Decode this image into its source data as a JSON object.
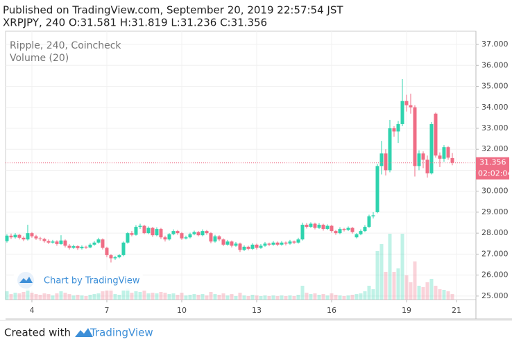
{
  "header": {
    "published": "Published on TradingView.com, September 20, 2019 22:57:54 JST",
    "ohlc": "XRPJPY, 240 O:31.581 H:31.819 L:31.236 C:31.356"
  },
  "chart_data": {
    "type": "candlestick",
    "legend": [
      "Ripple, 240, Coincheck",
      "Volume (20)"
    ],
    "watermark": "Chart by TradingView",
    "up_color": "#2fd3ae",
    "down_color": "#ef6d85",
    "ylim": [
      24.83,
      37.63
    ],
    "yticks": [
      {
        "value": 25,
        "label": "25.000"
      },
      {
        "value": 26,
        "label": "26.000"
      },
      {
        "value": 27,
        "label": "27.000"
      },
      {
        "value": 28,
        "label": "28.000"
      },
      {
        "value": 29,
        "label": "29.000"
      },
      {
        "value": 30,
        "label": "30.000"
      },
      {
        "value": 31,
        "label": "31.000"
      },
      {
        "value": 32,
        "label": "32.000"
      },
      {
        "value": 33,
        "label": "33.000"
      },
      {
        "value": 34,
        "label": "34.000"
      },
      {
        "value": 35,
        "label": "35.000"
      },
      {
        "value": 36,
        "label": "36.000"
      },
      {
        "value": 37,
        "label": "37.000"
      }
    ],
    "xlim": [
      -0.33,
      112.67
    ],
    "xticks": [
      {
        "value": 6,
        "label": "4"
      },
      {
        "value": 24,
        "label": "7"
      },
      {
        "value": 42,
        "label": "10"
      },
      {
        "value": 60,
        "label": "13"
      },
      {
        "value": 78,
        "label": "16"
      },
      {
        "value": 96,
        "label": "19"
      },
      {
        "value": 108,
        "label": "21"
      }
    ],
    "last_price": {
      "value": 31.356,
      "label": "31.356"
    },
    "countdown": "02:02:04",
    "candles": [
      [
        27.62,
        27.95,
        27.55,
        27.88,
        12
      ],
      [
        27.88,
        27.98,
        27.72,
        27.8,
        8
      ],
      [
        27.8,
        28.0,
        27.74,
        27.92,
        10
      ],
      [
        27.92,
        27.96,
        27.7,
        27.78,
        9
      ],
      [
        27.78,
        27.85,
        27.62,
        27.7,
        11
      ],
      [
        27.7,
        28.4,
        27.65,
        28.0,
        18
      ],
      [
        28.0,
        28.05,
        27.78,
        27.85,
        10
      ],
      [
        27.85,
        27.92,
        27.68,
        27.75,
        8
      ],
      [
        27.75,
        27.82,
        27.64,
        27.72,
        7
      ],
      [
        27.72,
        27.78,
        27.55,
        27.62,
        9
      ],
      [
        27.62,
        27.7,
        27.48,
        27.55,
        8
      ],
      [
        27.55,
        27.68,
        27.5,
        27.6,
        6
      ],
      [
        27.6,
        27.66,
        27.4,
        27.48,
        9
      ],
      [
        27.48,
        27.9,
        27.45,
        27.65,
        12
      ],
      [
        27.65,
        27.7,
        27.32,
        27.4,
        10
      ],
      [
        27.4,
        27.48,
        27.22,
        27.3,
        8
      ],
      [
        27.3,
        27.45,
        27.25,
        27.38,
        6
      ],
      [
        27.38,
        27.42,
        27.2,
        27.28,
        7
      ],
      [
        27.28,
        27.42,
        27.22,
        27.35,
        6
      ],
      [
        27.35,
        27.4,
        27.25,
        27.32,
        5
      ],
      [
        27.32,
        27.52,
        27.28,
        27.45,
        7
      ],
      [
        27.45,
        27.62,
        27.4,
        27.55,
        8
      ],
      [
        27.55,
        27.78,
        27.5,
        27.7,
        9
      ],
      [
        27.7,
        27.75,
        27.22,
        27.3,
        12
      ],
      [
        27.3,
        27.35,
        26.85,
        26.95,
        14
      ],
      [
        26.95,
        27.0,
        26.6,
        26.8,
        16
      ],
      [
        26.8,
        26.92,
        26.72,
        26.85,
        8
      ],
      [
        26.85,
        27.0,
        26.8,
        26.95,
        7
      ],
      [
        26.95,
        27.6,
        26.9,
        27.55,
        14
      ],
      [
        27.55,
        28.05,
        27.5,
        28.0,
        16
      ],
      [
        28.0,
        28.1,
        27.85,
        27.92,
        10
      ],
      [
        27.92,
        28.38,
        27.88,
        28.3,
        12
      ],
      [
        28.3,
        28.45,
        28.2,
        28.35,
        11
      ],
      [
        28.35,
        28.4,
        27.95,
        28.0,
        13
      ],
      [
        28.0,
        28.32,
        27.95,
        28.25,
        9
      ],
      [
        28.25,
        28.3,
        27.82,
        27.9,
        10
      ],
      [
        27.9,
        28.28,
        27.85,
        28.2,
        9
      ],
      [
        28.2,
        28.25,
        27.72,
        27.8,
        11
      ],
      [
        27.8,
        27.88,
        27.6,
        27.7,
        10
      ],
      [
        27.7,
        28.0,
        27.65,
        27.95,
        8
      ],
      [
        27.95,
        28.18,
        27.9,
        28.1,
        9
      ],
      [
        28.1,
        28.15,
        27.92,
        28.0,
        7
      ],
      [
        28.0,
        28.05,
        27.68,
        27.75,
        10
      ],
      [
        27.75,
        27.88,
        27.7,
        27.8,
        6
      ],
      [
        27.8,
        28.02,
        27.75,
        27.95,
        7
      ],
      [
        27.95,
        28.12,
        27.9,
        28.05,
        8
      ],
      [
        28.05,
        28.1,
        27.85,
        27.9,
        7
      ],
      [
        27.9,
        28.18,
        27.85,
        28.1,
        8
      ],
      [
        28.1,
        28.15,
        27.92,
        28.0,
        6
      ],
      [
        28.0,
        28.05,
        27.52,
        27.6,
        11
      ],
      [
        27.6,
        27.92,
        27.55,
        27.85,
        8
      ],
      [
        27.85,
        27.9,
        27.62,
        27.7,
        7
      ],
      [
        27.7,
        27.75,
        27.38,
        27.45,
        9
      ],
      [
        27.45,
        27.68,
        27.4,
        27.6,
        6
      ],
      [
        27.6,
        27.65,
        27.32,
        27.4,
        8
      ],
      [
        27.4,
        27.58,
        27.35,
        27.5,
        5
      ],
      [
        27.5,
        27.55,
        27.1,
        27.2,
        10
      ],
      [
        27.2,
        27.42,
        27.15,
        27.35,
        6
      ],
      [
        27.35,
        27.4,
        27.18,
        27.25,
        5
      ],
      [
        27.25,
        27.52,
        27.2,
        27.45,
        7
      ],
      [
        27.45,
        27.5,
        27.22,
        27.3,
        6
      ],
      [
        27.3,
        27.48,
        27.25,
        27.4,
        5
      ],
      [
        27.4,
        27.58,
        27.35,
        27.5,
        6
      ],
      [
        27.5,
        27.55,
        27.38,
        27.45,
        5
      ],
      [
        27.45,
        27.62,
        27.4,
        27.55,
        6
      ],
      [
        27.55,
        27.6,
        27.38,
        27.45,
        5
      ],
      [
        27.45,
        27.62,
        27.4,
        27.55,
        6
      ],
      [
        27.55,
        27.6,
        27.42,
        27.5,
        5
      ],
      [
        27.5,
        27.68,
        27.45,
        27.6,
        6
      ],
      [
        27.6,
        27.65,
        27.48,
        27.55,
        5
      ],
      [
        27.55,
        27.78,
        27.5,
        27.7,
        7
      ],
      [
        27.7,
        28.5,
        27.65,
        28.4,
        20
      ],
      [
        28.4,
        28.48,
        28.22,
        28.3,
        10
      ],
      [
        28.3,
        28.52,
        28.25,
        28.45,
        8
      ],
      [
        28.45,
        28.5,
        28.18,
        28.25,
        9
      ],
      [
        28.25,
        28.48,
        28.2,
        28.4,
        7
      ],
      [
        28.4,
        28.45,
        28.12,
        28.2,
        8
      ],
      [
        28.2,
        28.42,
        28.15,
        28.35,
        6
      ],
      [
        28.35,
        28.4,
        28.02,
        28.1,
        9
      ],
      [
        28.1,
        28.15,
        27.92,
        28.0,
        7
      ],
      [
        28.0,
        28.28,
        27.95,
        28.2,
        6
      ],
      [
        28.2,
        28.25,
        28.08,
        28.15,
        5
      ],
      [
        28.15,
        28.32,
        28.1,
        28.25,
        6
      ],
      [
        28.25,
        28.3,
        27.98,
        28.05,
        7
      ],
      [
        27.8,
        28.0,
        27.75,
        27.95,
        8
      ],
      [
        27.95,
        28.18,
        27.9,
        28.1,
        9
      ],
      [
        28.1,
        28.38,
        28.05,
        28.3,
        12
      ],
      [
        28.3,
        28.88,
        28.25,
        28.8,
        20
      ],
      [
        28.8,
        29.0,
        28.7,
        28.85,
        15
      ],
      [
        29.0,
        31.3,
        28.95,
        31.2,
        70
      ],
      [
        31.2,
        32.4,
        30.8,
        31.8,
        80
      ],
      [
        31.8,
        32.0,
        30.75,
        31.0,
        40
      ],
      [
        31.0,
        33.4,
        30.9,
        33.0,
        95
      ],
      [
        33.0,
        33.1,
        32.6,
        32.85,
        40
      ],
      [
        32.85,
        33.35,
        32.3,
        33.2,
        45
      ],
      [
        33.2,
        35.35,
        33.1,
        34.3,
        95
      ],
      [
        34.3,
        34.6,
        33.8,
        34.1,
        35
      ],
      [
        34.1,
        34.65,
        33.7,
        34.0,
        25
      ],
      [
        34.0,
        34.1,
        30.7,
        31.2,
        55
      ],
      [
        31.2,
        31.95,
        31.0,
        31.8,
        20
      ],
      [
        31.8,
        31.9,
        31.1,
        31.5,
        18
      ],
      [
        31.5,
        31.7,
        30.65,
        30.85,
        25
      ],
      [
        30.85,
        33.3,
        30.8,
        33.2,
        30
      ],
      [
        33.7,
        33.75,
        31.6,
        31.7,
        20
      ],
      [
        31.7,
        31.85,
        31.15,
        31.55,
        15
      ],
      [
        31.55,
        32.2,
        31.4,
        32.1,
        14
      ],
      [
        32.1,
        32.15,
        31.5,
        31.6,
        12
      ],
      [
        31.581,
        31.819,
        31.236,
        31.356,
        8
      ]
    ]
  },
  "footer": {
    "created": "Created with",
    "brand": "TradingView"
  }
}
